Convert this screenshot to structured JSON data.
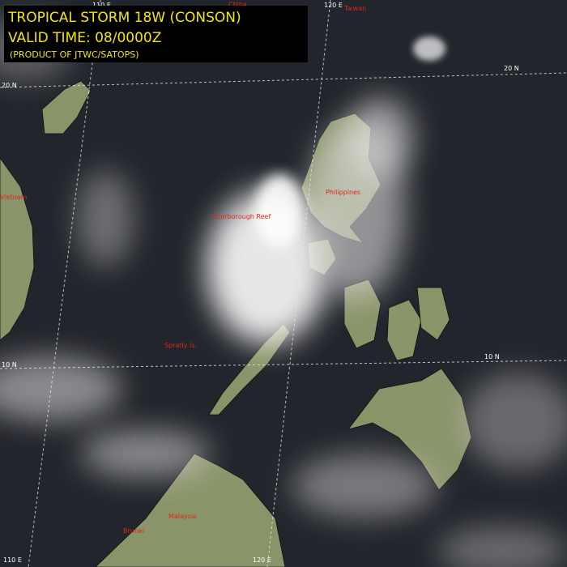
{
  "header": {
    "title": "TROPICAL STORM 18W (CONSON)",
    "valid_time": "VALID TIME: 08/0000Z",
    "product": "(PRODUCT OF JTWC/SATOPS)"
  },
  "grid_labels": {
    "top_110e": "110 E",
    "top_120e": "120 E",
    "right_20n": "20 N",
    "left_20n": "20 N",
    "right_10n": "10 N",
    "left_10n": "10 N",
    "bottom_110e": "110 E",
    "bottom_120e": "120 E"
  },
  "places": {
    "china": "China",
    "taiwan": "Taiwan",
    "philippines": "Philippines",
    "scarborough_reef": "Scarborough Reef",
    "vietnam": "Vietnam",
    "spratly_is": "Spratly Is.",
    "malaysia": "Malaysia",
    "brunei": "Brunei"
  }
}
